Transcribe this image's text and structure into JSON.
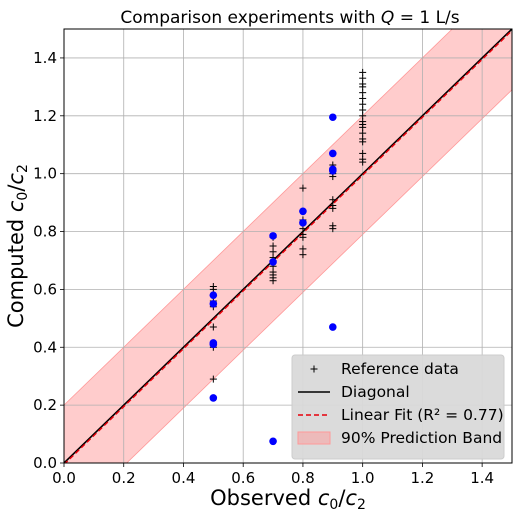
{
  "chart_data": {
    "type": "scatter",
    "title": "Comparison experiments with Q = 1 L/s",
    "title_parts": {
      "prefix": "Comparison experiments with ",
      "math": "Q",
      "suffix": " = 1 L/s"
    },
    "xlabel": "Observed c0/c2",
    "ylabel": "Computed c0/c2",
    "xlim": [
      0.0,
      1.5
    ],
    "ylim": [
      0.0,
      1.5
    ],
    "xticks": [
      "0.0",
      "0.2",
      "0.4",
      "0.6",
      "0.8",
      "1.0",
      "1.2",
      "1.4"
    ],
    "yticks": [
      "0.0",
      "0.2",
      "0.4",
      "0.6",
      "0.8",
      "1.0",
      "1.2",
      "1.4"
    ],
    "grid": true,
    "legend_position": "bottom-right",
    "colors": {
      "reference": "#000000",
      "diagonal": "#000000",
      "fit": "#e8000b",
      "band": "#ff9999",
      "points": "#0000ff"
    },
    "legend": [
      {
        "key": "reference",
        "label": "Reference data"
      },
      {
        "key": "diagonal",
        "label": "Diagonal"
      },
      {
        "key": "fit",
        "label": "Linear Fit (R² = 0.77)"
      },
      {
        "key": "band",
        "label": "90% Prediction Band"
      }
    ],
    "fit": {
      "slope": 1.0,
      "intercept": -0.005,
      "r2": 0.77
    },
    "prediction_band_halfwidth": 0.205,
    "series": [
      {
        "name": "Reference data",
        "marker": "plus",
        "x": [
          0.5,
          0.5,
          0.5,
          0.5,
          0.5,
          0.5,
          0.5,
          0.5,
          0.5,
          0.7,
          0.7,
          0.7,
          0.7,
          0.7,
          0.7,
          0.7,
          0.7,
          0.7,
          0.7,
          0.8,
          0.8,
          0.8,
          0.8,
          0.8,
          0.8,
          0.8,
          0.8,
          0.8,
          0.9,
          0.9,
          0.9,
          0.9,
          0.9,
          0.9,
          0.9,
          0.9,
          1.0,
          1.0,
          1.0,
          1.0,
          1.0,
          1.0,
          1.0,
          1.0,
          1.0,
          1.0,
          1.0,
          1.0,
          1.0,
          1.0,
          1.0,
          1.0,
          1.0,
          1.0
        ],
        "y": [
          0.61,
          0.6,
          0.58,
          0.56,
          0.54,
          0.47,
          0.41,
          0.4,
          0.29,
          0.78,
          0.75,
          0.73,
          0.71,
          0.7,
          0.68,
          0.66,
          0.65,
          0.64,
          0.63,
          0.95,
          0.87,
          0.84,
          0.83,
          0.81,
          0.79,
          0.78,
          0.74,
          0.72,
          1.03,
          1.0,
          0.99,
          0.91,
          0.89,
          0.88,
          0.82,
          0.81,
          1.35,
          1.33,
          1.31,
          1.3,
          1.28,
          1.26,
          1.24,
          1.22,
          1.2,
          1.18,
          1.17,
          1.16,
          1.14,
          1.12,
          1.11,
          1.07,
          1.05,
          1.04
        ]
      },
      {
        "name": "",
        "marker": "circle",
        "x": [
          0.5,
          0.5,
          0.5,
          0.5,
          0.5,
          0.7,
          0.7,
          0.7,
          0.8,
          0.8,
          0.9,
          0.9,
          0.9,
          0.9,
          0.9
        ],
        "y": [
          0.58,
          0.55,
          0.415,
          0.41,
          0.225,
          0.785,
          0.695,
          0.075,
          0.87,
          0.83,
          1.195,
          1.07,
          1.015,
          1.01,
          0.47
        ]
      }
    ]
  }
}
